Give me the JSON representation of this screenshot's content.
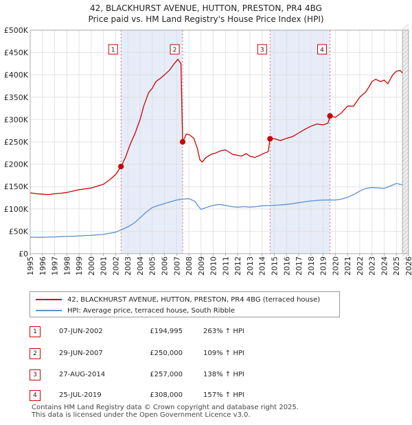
{
  "title_line1": "42, BLACKHURST AVENUE, HUTTON, PRESTON, PR4 4BG",
  "title_line2": "Price paid vs. HM Land Registry's House Price Index (HPI)",
  "colors": {
    "property": "#cc0000",
    "hpi": "#5b8fd0",
    "shade": "#e6ecf8",
    "grid": "#dddddd"
  },
  "chart_data": {
    "type": "line",
    "xlim": [
      1995,
      2026
    ],
    "ylim": [
      0,
      500000
    ],
    "x_ticks": [
      1995,
      1996,
      1997,
      1998,
      1999,
      2000,
      2001,
      2002,
      2003,
      2004,
      2005,
      2006,
      2007,
      2008,
      2009,
      2010,
      2011,
      2012,
      2013,
      2014,
      2015,
      2016,
      2017,
      2018,
      2019,
      2020,
      2021,
      2022,
      2023,
      2024,
      2025,
      2026
    ],
    "y_ticks": [
      {
        "value": 0,
        "label": "£0"
      },
      {
        "value": 50000,
        "label": "£50K"
      },
      {
        "value": 100000,
        "label": "£100K"
      },
      {
        "value": 150000,
        "label": "£150K"
      },
      {
        "value": 200000,
        "label": "£200K"
      },
      {
        "value": 250000,
        "label": "£250K"
      },
      {
        "value": 300000,
        "label": "£300K"
      },
      {
        "value": 350000,
        "label": "£350K"
      },
      {
        "value": 400000,
        "label": "£400K"
      },
      {
        "value": 450000,
        "label": "£450K"
      },
      {
        "value": 500000,
        "label": "£500K"
      }
    ],
    "shaded_ranges": [
      [
        2002.44,
        2007.49
      ],
      [
        2014.65,
        2019.56
      ]
    ],
    "series": [
      {
        "name": "42, BLACKHURST AVENUE, HUTTON, PRESTON, PR4 4BG (terraced house)",
        "color": "#cc0000",
        "points": [
          [
            1995.0,
            136000
          ],
          [
            1995.5,
            134000
          ],
          [
            1996.0,
            133000
          ],
          [
            1996.5,
            132000
          ],
          [
            1997.0,
            134000
          ],
          [
            1997.5,
            135000
          ],
          [
            1998.0,
            137000
          ],
          [
            1998.5,
            140000
          ],
          [
            1999.0,
            143000
          ],
          [
            1999.5,
            145000
          ],
          [
            2000.0,
            147000
          ],
          [
            2000.5,
            151000
          ],
          [
            2001.0,
            155000
          ],
          [
            2001.5,
            165000
          ],
          [
            2002.0,
            177000
          ],
          [
            2002.44,
            194995
          ],
          [
            2002.8,
            215000
          ],
          [
            2003.2,
            245000
          ],
          [
            2003.6,
            270000
          ],
          [
            2004.0,
            300000
          ],
          [
            2004.3,
            330000
          ],
          [
            2004.7,
            360000
          ],
          [
            2005.0,
            370000
          ],
          [
            2005.3,
            385000
          ],
          [
            2005.7,
            393000
          ],
          [
            2006.0,
            400000
          ],
          [
            2006.4,
            410000
          ],
          [
            2006.8,
            425000
          ],
          [
            2007.1,
            435000
          ],
          [
            2007.35,
            425000
          ],
          [
            2007.49,
            250000
          ],
          [
            2007.8,
            268000
          ],
          [
            2008.1,
            265000
          ],
          [
            2008.4,
            258000
          ],
          [
            2008.7,
            235000
          ],
          [
            2008.9,
            210000
          ],
          [
            2009.1,
            205000
          ],
          [
            2009.4,
            215000
          ],
          [
            2009.8,
            222000
          ],
          [
            2010.2,
            225000
          ],
          [
            2010.6,
            230000
          ],
          [
            2011.0,
            232000
          ],
          [
            2011.3,
            227000
          ],
          [
            2011.6,
            222000
          ],
          [
            2012.0,
            220000
          ],
          [
            2012.3,
            218000
          ],
          [
            2012.7,
            224000
          ],
          [
            2013.0,
            218000
          ],
          [
            2013.4,
            215000
          ],
          [
            2013.8,
            220000
          ],
          [
            2014.2,
            225000
          ],
          [
            2014.5,
            228000
          ],
          [
            2014.65,
            257000
          ],
          [
            2015.0,
            257000
          ],
          [
            2015.5,
            253000
          ],
          [
            2016.0,
            258000
          ],
          [
            2016.5,
            262000
          ],
          [
            2017.0,
            270000
          ],
          [
            2017.5,
            278000
          ],
          [
            2018.0,
            285000
          ],
          [
            2018.5,
            290000
          ],
          [
            2019.0,
            288000
          ],
          [
            2019.4,
            292000
          ],
          [
            2019.56,
            308000
          ],
          [
            2020.0,
            305000
          ],
          [
            2020.5,
            315000
          ],
          [
            2021.0,
            330000
          ],
          [
            2021.5,
            330000
          ],
          [
            2022.0,
            350000
          ],
          [
            2022.5,
            362000
          ],
          [
            2022.8,
            375000
          ],
          [
            2023.0,
            385000
          ],
          [
            2023.3,
            390000
          ],
          [
            2023.7,
            385000
          ],
          [
            2024.0,
            388000
          ],
          [
            2024.3,
            380000
          ],
          [
            2024.7,
            400000
          ],
          [
            2025.0,
            408000
          ],
          [
            2025.3,
            410000
          ],
          [
            2025.5,
            404000
          ]
        ]
      },
      {
        "name": "HPI: Average price, terraced house, South Ribble",
        "color": "#5b8fd0",
        "points": [
          [
            1995.0,
            37000
          ],
          [
            1995.5,
            36500
          ],
          [
            1996.0,
            36500
          ],
          [
            1996.5,
            37000
          ],
          [
            1997.0,
            37500
          ],
          [
            1997.5,
            38000
          ],
          [
            1998.0,
            38500
          ],
          [
            1998.5,
            39000
          ],
          [
            1999.0,
            39500
          ],
          [
            1999.5,
            40500
          ],
          [
            2000.0,
            41000
          ],
          [
            2000.5,
            42000
          ],
          [
            2001.0,
            43000
          ],
          [
            2001.5,
            45500
          ],
          [
            2002.0,
            48000
          ],
          [
            2002.44,
            53000
          ],
          [
            2003.0,
            60000
          ],
          [
            2003.5,
            68000
          ],
          [
            2004.0,
            80000
          ],
          [
            2004.5,
            93000
          ],
          [
            2005.0,
            103000
          ],
          [
            2005.5,
            108000
          ],
          [
            2006.0,
            112000
          ],
          [
            2006.5,
            116000
          ],
          [
            2007.0,
            120000
          ],
          [
            2007.5,
            122000
          ],
          [
            2008.0,
            123000
          ],
          [
            2008.5,
            117000
          ],
          [
            2008.8,
            105000
          ],
          [
            2009.0,
            99000
          ],
          [
            2009.5,
            104000
          ],
          [
            2010.0,
            108000
          ],
          [
            2010.5,
            110000
          ],
          [
            2011.0,
            108000
          ],
          [
            2011.5,
            105000
          ],
          [
            2012.0,
            104000
          ],
          [
            2012.5,
            105000
          ],
          [
            2013.0,
            104000
          ],
          [
            2013.5,
            105000
          ],
          [
            2014.0,
            107000
          ],
          [
            2014.65,
            108000
          ],
          [
            2015.0,
            108000
          ],
          [
            2015.5,
            109000
          ],
          [
            2016.0,
            110000
          ],
          [
            2016.5,
            112000
          ],
          [
            2017.0,
            114000
          ],
          [
            2017.5,
            116000
          ],
          [
            2018.0,
            118000
          ],
          [
            2018.5,
            119000
          ],
          [
            2019.0,
            120000
          ],
          [
            2019.56,
            120000
          ],
          [
            2020.0,
            120000
          ],
          [
            2020.5,
            122000
          ],
          [
            2021.0,
            126000
          ],
          [
            2021.5,
            132000
          ],
          [
            2022.0,
            140000
          ],
          [
            2022.5,
            146000
          ],
          [
            2023.0,
            148000
          ],
          [
            2023.5,
            147000
          ],
          [
            2024.0,
            146000
          ],
          [
            2024.5,
            151000
          ],
          [
            2025.0,
            157000
          ],
          [
            2025.5,
            154000
          ]
        ]
      }
    ],
    "sales": [
      {
        "num": "1",
        "x": 2002.44,
        "price": 194995
      },
      {
        "num": "2",
        "x": 2007.49,
        "price": 250000
      },
      {
        "num": "3",
        "x": 2014.65,
        "price": 257000
      },
      {
        "num": "4",
        "x": 2019.56,
        "price": 308000
      }
    ]
  },
  "legend": {
    "property_label": "42, BLACKHURST AVENUE, HUTTON, PRESTON, PR4 4BG (terraced house)",
    "hpi_label": "HPI: Average price, terraced house, South Ribble"
  },
  "sales_table": [
    {
      "num": "1",
      "date": "07-JUN-2002",
      "price": "£194,995",
      "hpi": "263% ↑ HPI"
    },
    {
      "num": "2",
      "date": "29-JUN-2007",
      "price": "£250,000",
      "hpi": "109% ↑ HPI"
    },
    {
      "num": "3",
      "date": "27-AUG-2014",
      "price": "£257,000",
      "hpi": "138% ↑ HPI"
    },
    {
      "num": "4",
      "date": "25-JUL-2019",
      "price": "£308,000",
      "hpi": "157% ↑ HPI"
    }
  ],
  "footer_line1": "Contains HM Land Registry data © Crown copyright and database right 2025.",
  "footer_line2": "This data is licensed under the Open Government Licence v3.0."
}
